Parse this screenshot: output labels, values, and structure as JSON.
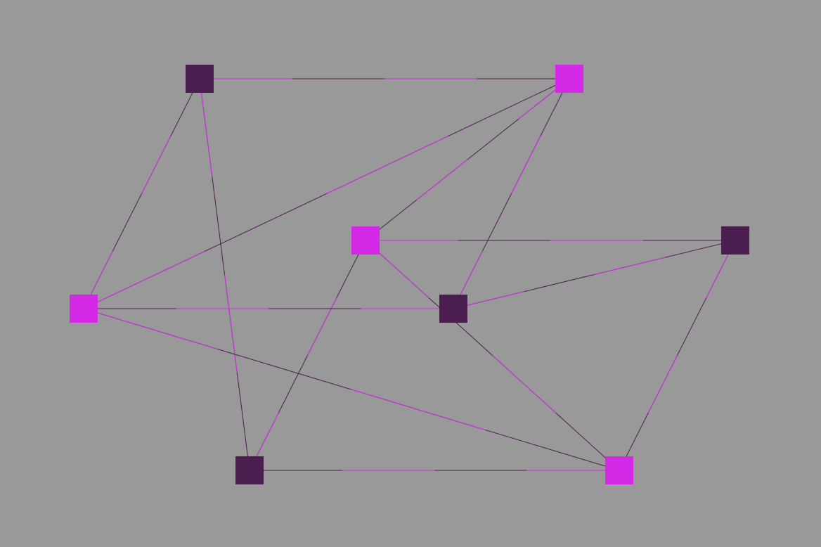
{
  "game": {
    "background_color": "#999999",
    "colors": {
      "dark": "#4b1e50",
      "magenta": "#d42ae8"
    },
    "nodes": [
      {
        "id": "n1",
        "color": "dark"
      },
      {
        "id": "n2",
        "color": "magenta"
      },
      {
        "id": "n3",
        "color": "magenta"
      },
      {
        "id": "n4",
        "color": "dark"
      },
      {
        "id": "n5",
        "color": "magenta"
      },
      {
        "id": "n6",
        "color": "dark"
      },
      {
        "id": "n7",
        "color": "dark"
      },
      {
        "id": "n8",
        "color": "magenta"
      }
    ],
    "edges": [
      {
        "from": "n1",
        "to": "n2"
      },
      {
        "from": "n1",
        "to": "n5"
      },
      {
        "from": "n1",
        "to": "n7"
      },
      {
        "from": "n2",
        "to": "n5"
      },
      {
        "from": "n2",
        "to": "n3"
      },
      {
        "from": "n2",
        "to": "n6"
      },
      {
        "from": "n3",
        "to": "n4"
      },
      {
        "from": "n3",
        "to": "n7"
      },
      {
        "from": "n3",
        "to": "n8"
      },
      {
        "from": "n4",
        "to": "n6"
      },
      {
        "from": "n4",
        "to": "n8"
      },
      {
        "from": "n5",
        "to": "n6"
      },
      {
        "from": "n5",
        "to": "n8"
      },
      {
        "from": "n7",
        "to": "n8"
      }
    ]
  }
}
